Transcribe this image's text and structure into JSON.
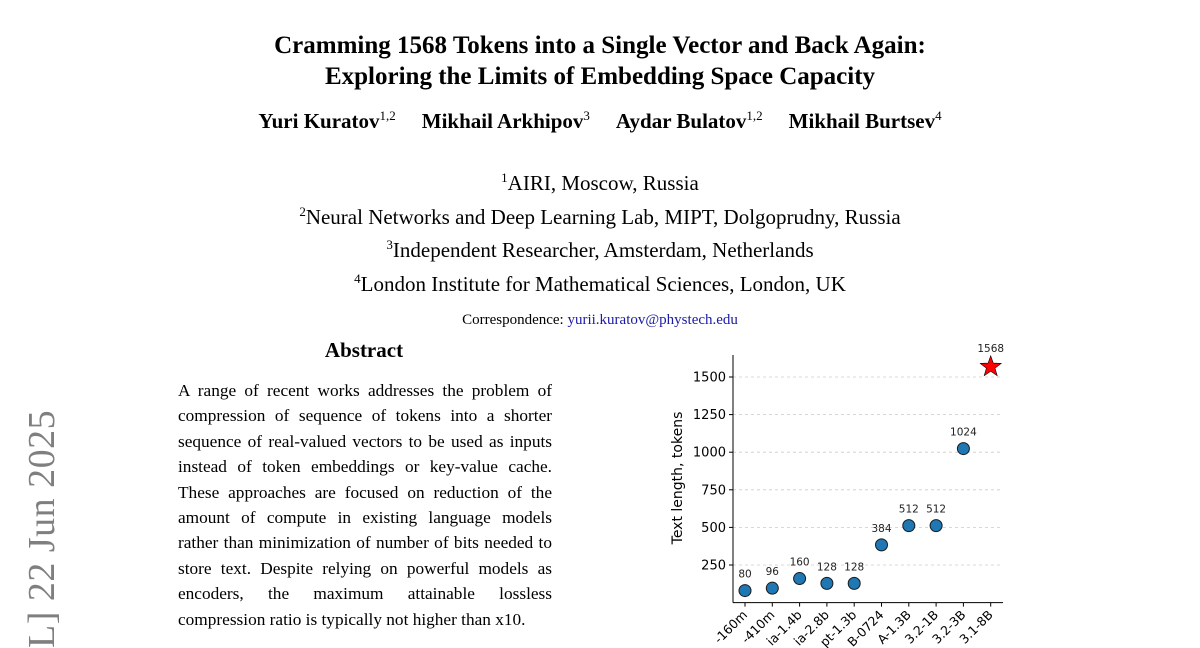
{
  "paper": {
    "title_line1": "Cramming 1568 Tokens into a Single Vector and Back Again:",
    "title_line2": "Exploring the Limits of Embedding Space Capacity",
    "authors": [
      {
        "name": "Yuri Kuratov",
        "aff": "1,2"
      },
      {
        "name": "Mikhail Arkhipov",
        "aff": "3"
      },
      {
        "name": "Aydar Bulatov",
        "aff": "1,2"
      },
      {
        "name": "Mikhail Burtsev",
        "aff": "4"
      }
    ],
    "affiliations": [
      {
        "num": "1",
        "text": "AIRI, Moscow, Russia"
      },
      {
        "num": "2",
        "text": "Neural Networks and Deep Learning Lab, MIPT, Dolgoprudny, Russia"
      },
      {
        "num": "3",
        "text": "Independent Researcher, Amsterdam, Netherlands"
      },
      {
        "num": "4",
        "text": "London Institute for Mathematical Sciences, London, UK"
      }
    ],
    "correspondence_label": "Correspondence:",
    "correspondence_email": "yurii.kuratov@phystech.edu",
    "abstract_heading": "Abstract",
    "abstract_text": "A range of recent works addresses the problem of compression of sequence of tokens into a shorter sequence of real-valued vectors to be used as inputs instead of token embeddings or key-value cache. These approaches are focused on reduction of the amount of compute in existing language models rather than minimization of number of bits needed to store text. Despite relying on powerful models as encoders, the maximum attainable lossless compression ratio is typically not higher than x10.",
    "arxiv_sidebar": "L]  22 Jun 2025"
  },
  "chart_data": {
    "type": "scatter",
    "ylabel": "Text length, tokens",
    "xlabel": "",
    "categories": [
      "-160m",
      "-410m",
      "ia-1.4b",
      "ia-2.8b",
      "pt-1.3b",
      "B-0724",
      "A-1.3B",
      "3.2-1B",
      "3.2-3B",
      "3.1-8B"
    ],
    "values": [
      80,
      96,
      160,
      128,
      128,
      384,
      512,
      512,
      1024,
      1568
    ],
    "data_labels": [
      "80",
      "96",
      "160",
      "128",
      "128",
      "384",
      "512",
      "512",
      "1024",
      "1568"
    ],
    "yticks": [
      250,
      500,
      750,
      1000,
      1250,
      1500
    ],
    "ylim": [
      0,
      1650
    ],
    "grid": "horizontal dashed",
    "marker_color": "#1f77b4",
    "highlight_color": "#ff0000",
    "highlight_marker": "star",
    "highlight_index": 9
  }
}
